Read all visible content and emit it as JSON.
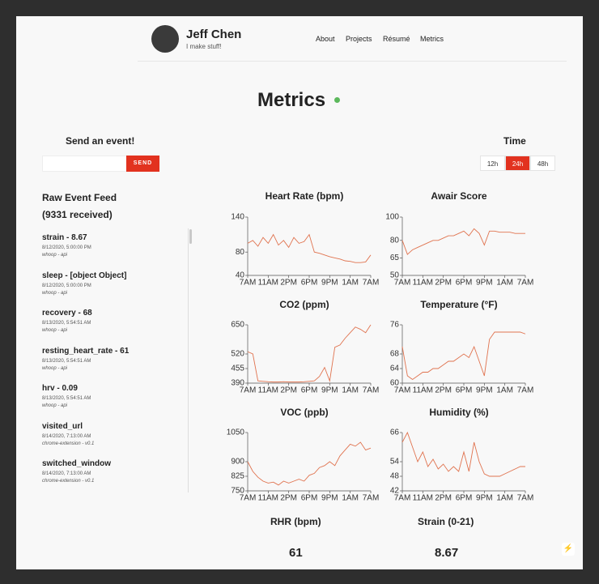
{
  "header": {
    "name": "Jeff Chen",
    "tagline": "I make stuff!",
    "nav": [
      "About",
      "Projects",
      "Résumé",
      "Metrics"
    ]
  },
  "page_title": "Metrics",
  "send": {
    "title": "Send an event!",
    "button": "SEND"
  },
  "time": {
    "title": "Time",
    "options": [
      "12h",
      "24h",
      "48h"
    ],
    "selected": 1
  },
  "feed": {
    "title": "Raw Event Feed",
    "count": "(9331 received)",
    "events": [
      {
        "name": "strain - 8.67",
        "date": "8/12/2020, 5:00:00 PM",
        "source": "whoop - api"
      },
      {
        "name": "sleep - [object Object]",
        "date": "8/12/2020, 5:00:00 PM",
        "source": "whoop - api"
      },
      {
        "name": "recovery - 68",
        "date": "8/13/2020, 5:54:51 AM",
        "source": "whoop - api"
      },
      {
        "name": "resting_heart_rate - 61",
        "date": "8/13/2020, 5:54:51 AM",
        "source": "whoop - api"
      },
      {
        "name": "hrv - 0.09",
        "date": "8/13/2020, 5:54:51 AM",
        "source": "whoop - api"
      },
      {
        "name": "visited_url",
        "date": "8/14/2020, 7:13:00 AM",
        "source": "chrome-extension - v0.1"
      },
      {
        "name": "switched_window",
        "date": "8/14/2020, 7:13:00 AM",
        "source": "chrome-extension - v0.1"
      }
    ]
  },
  "chart_data": [
    {
      "type": "line",
      "title": "Heart Rate (bpm)",
      "color": "#e0734f",
      "x": [
        0,
        1,
        2,
        3,
        4,
        5,
        6,
        7,
        8,
        9,
        10,
        11,
        12,
        13,
        14,
        15,
        16,
        17,
        18,
        19,
        20,
        21,
        22,
        23,
        24
      ],
      "values": [
        95,
        100,
        90,
        105,
        95,
        110,
        92,
        100,
        88,
        105,
        95,
        98,
        110,
        80,
        78,
        75,
        72,
        70,
        68,
        65,
        64,
        62,
        62,
        63,
        75
      ],
      "ylim": [
        40,
        140
      ],
      "yticks": [
        40,
        80,
        140
      ],
      "xlim": [
        0,
        24
      ],
      "xticks": [
        {
          "value": 0,
          "label": "7AM"
        },
        {
          "value": 4,
          "label": "11AM"
        },
        {
          "value": 8,
          "label": "2PM"
        },
        {
          "value": 12,
          "label": "6PM"
        },
        {
          "value": 16,
          "label": "9PM"
        },
        {
          "value": 20,
          "label": "1AM"
        },
        {
          "value": 24,
          "label": "7AM"
        }
      ]
    },
    {
      "type": "line",
      "title": "Awair Score",
      "color": "#e0734f",
      "x": [
        0,
        1,
        2,
        3,
        4,
        5,
        6,
        7,
        8,
        9,
        10,
        11,
        12,
        13,
        14,
        15,
        16,
        17,
        18,
        19,
        20,
        21,
        22,
        23,
        24
      ],
      "values": [
        80,
        68,
        72,
        74,
        76,
        78,
        80,
        80,
        82,
        84,
        84,
        86,
        88,
        84,
        90,
        86,
        76,
        88,
        88,
        87,
        87,
        87,
        86,
        86,
        86
      ],
      "ylim": [
        50,
        100
      ],
      "yticks": [
        50,
        65,
        80,
        100
      ],
      "xlim": [
        0,
        24
      ],
      "xticks": [
        {
          "value": 0,
          "label": "7AM"
        },
        {
          "value": 4,
          "label": "11AM"
        },
        {
          "value": 8,
          "label": "2PM"
        },
        {
          "value": 12,
          "label": "6PM"
        },
        {
          "value": 16,
          "label": "9PM"
        },
        {
          "value": 20,
          "label": "1AM"
        },
        {
          "value": 24,
          "label": "7AM"
        }
      ]
    },
    {
      "type": "line",
      "title": "CO2 (ppm)",
      "color": "#e0734f",
      "x": [
        0,
        1,
        2,
        3,
        4,
        5,
        6,
        7,
        8,
        9,
        10,
        11,
        12,
        13,
        14,
        15,
        16,
        17,
        18,
        19,
        20,
        21,
        22,
        23,
        24
      ],
      "values": [
        530,
        520,
        400,
        398,
        396,
        395,
        395,
        396,
        395,
        395,
        395,
        396,
        398,
        400,
        420,
        460,
        400,
        550,
        560,
        590,
        615,
        640,
        630,
        615,
        650
      ],
      "ylim": [
        390,
        650
      ],
      "yticks": [
        390,
        455,
        520,
        650
      ],
      "xlim": [
        0,
        24
      ],
      "xticks": [
        {
          "value": 0,
          "label": "7AM"
        },
        {
          "value": 4,
          "label": "11AM"
        },
        {
          "value": 8,
          "label": "2PM"
        },
        {
          "value": 12,
          "label": "6PM"
        },
        {
          "value": 16,
          "label": "9PM"
        },
        {
          "value": 20,
          "label": "1AM"
        },
        {
          "value": 24,
          "label": "7AM"
        }
      ]
    },
    {
      "type": "line",
      "title": "Temperature (°F)",
      "color": "#e0734f",
      "x": [
        0,
        1,
        2,
        3,
        4,
        5,
        6,
        7,
        8,
        9,
        10,
        11,
        12,
        13,
        14,
        15,
        16,
        17,
        18,
        19,
        20,
        21,
        22,
        23,
        24
      ],
      "values": [
        70,
        62,
        61,
        62,
        63,
        63,
        64,
        64,
        65,
        66,
        66,
        67,
        68,
        67,
        70,
        66,
        62,
        72,
        74,
        74,
        74,
        74,
        74,
        74,
        73.5
      ],
      "ylim": [
        60,
        76
      ],
      "yticks": [
        60,
        64,
        68,
        76
      ],
      "xlim": [
        0,
        24
      ],
      "xticks": [
        {
          "value": 0,
          "label": "7AM"
        },
        {
          "value": 4,
          "label": "11AM"
        },
        {
          "value": 8,
          "label": "2PM"
        },
        {
          "value": 12,
          "label": "6PM"
        },
        {
          "value": 16,
          "label": "9PM"
        },
        {
          "value": 20,
          "label": "1AM"
        },
        {
          "value": 24,
          "label": "7AM"
        }
      ]
    },
    {
      "type": "line",
      "title": "VOC (ppb)",
      "color": "#e0734f",
      "x": [
        0,
        1,
        2,
        3,
        4,
        5,
        6,
        7,
        8,
        9,
        10,
        11,
        12,
        13,
        14,
        15,
        16,
        17,
        18,
        19,
        20,
        21,
        22,
        23,
        24
      ],
      "values": [
        900,
        850,
        820,
        800,
        790,
        795,
        780,
        800,
        790,
        800,
        810,
        800,
        830,
        840,
        870,
        880,
        900,
        880,
        930,
        960,
        990,
        980,
        1000,
        960,
        970
      ],
      "ylim": [
        750,
        1050
      ],
      "yticks": [
        750,
        825,
        900,
        1050
      ],
      "xlim": [
        0,
        24
      ],
      "xticks": [
        {
          "value": 0,
          "label": "7AM"
        },
        {
          "value": 4,
          "label": "11AM"
        },
        {
          "value": 8,
          "label": "2PM"
        },
        {
          "value": 12,
          "label": "6PM"
        },
        {
          "value": 16,
          "label": "9PM"
        },
        {
          "value": 20,
          "label": "1AM"
        },
        {
          "value": 24,
          "label": "7AM"
        }
      ]
    },
    {
      "type": "line",
      "title": "Humidity (%)",
      "color": "#e0734f",
      "x": [
        0,
        1,
        2,
        3,
        4,
        5,
        6,
        7,
        8,
        9,
        10,
        11,
        12,
        13,
        14,
        15,
        16,
        17,
        18,
        19,
        20,
        21,
        22,
        23,
        24
      ],
      "values": [
        62,
        66,
        60,
        54,
        58,
        52,
        55,
        51,
        53,
        50,
        52,
        50,
        58,
        50,
        62,
        54,
        49,
        48,
        48,
        48,
        49,
        50,
        51,
        52,
        52
      ],
      "ylim": [
        42,
        66
      ],
      "yticks": [
        42,
        48,
        54,
        66
      ],
      "xlim": [
        0,
        24
      ],
      "xticks": [
        {
          "value": 0,
          "label": "7AM"
        },
        {
          "value": 4,
          "label": "11AM"
        },
        {
          "value": 8,
          "label": "2PM"
        },
        {
          "value": 12,
          "label": "6PM"
        },
        {
          "value": 16,
          "label": "9PM"
        },
        {
          "value": 20,
          "label": "1AM"
        },
        {
          "value": 24,
          "label": "7AM"
        }
      ]
    }
  ],
  "stats": [
    {
      "title": "RHR (bpm)",
      "value": "61"
    },
    {
      "title": "Strain (0-21)",
      "value": "8.67"
    }
  ]
}
